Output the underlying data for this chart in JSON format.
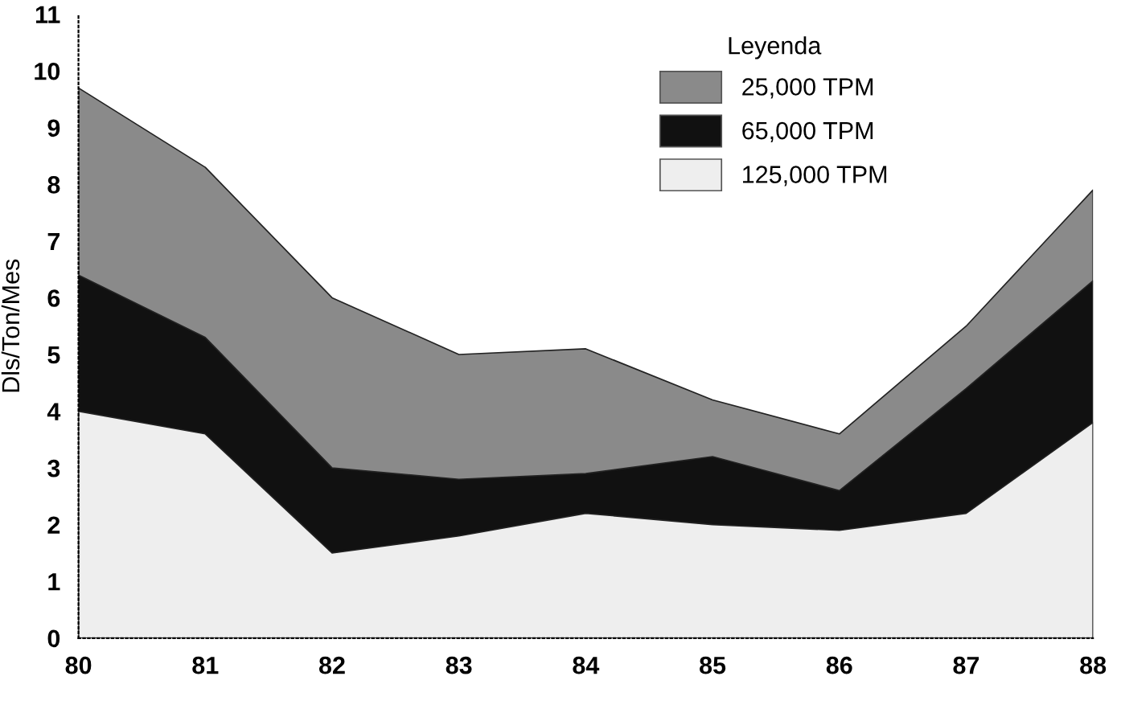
{
  "chart_data": {
    "type": "area",
    "ylabel": "Dls/Ton/Mes",
    "legend_title": "Leyenda",
    "categories": [
      "80",
      "81",
      "82",
      "83",
      "84",
      "85",
      "86",
      "87",
      "88"
    ],
    "series": [
      {
        "name": "25,000 TPM",
        "color": "#8a8a8a",
        "values": [
          9.7,
          8.3,
          6.0,
          5.0,
          5.1,
          4.2,
          3.6,
          5.5,
          7.9
        ]
      },
      {
        "name": "65,000 TPM",
        "color": "#111111",
        "values": [
          6.4,
          5.3,
          3.0,
          2.8,
          2.9,
          3.2,
          2.6,
          4.4,
          6.3
        ]
      },
      {
        "name": "125,000 TPM",
        "color": "#eeeeee",
        "values": [
          4.0,
          3.6,
          1.5,
          1.8,
          2.2,
          2.0,
          1.9,
          2.2,
          3.8
        ]
      }
    ],
    "ylim": [
      0,
      11
    ],
    "yticks": [
      0,
      1,
      2,
      3,
      4,
      5,
      6,
      7,
      8,
      9,
      10,
      11
    ],
    "grid": false,
    "legend": "top right"
  }
}
